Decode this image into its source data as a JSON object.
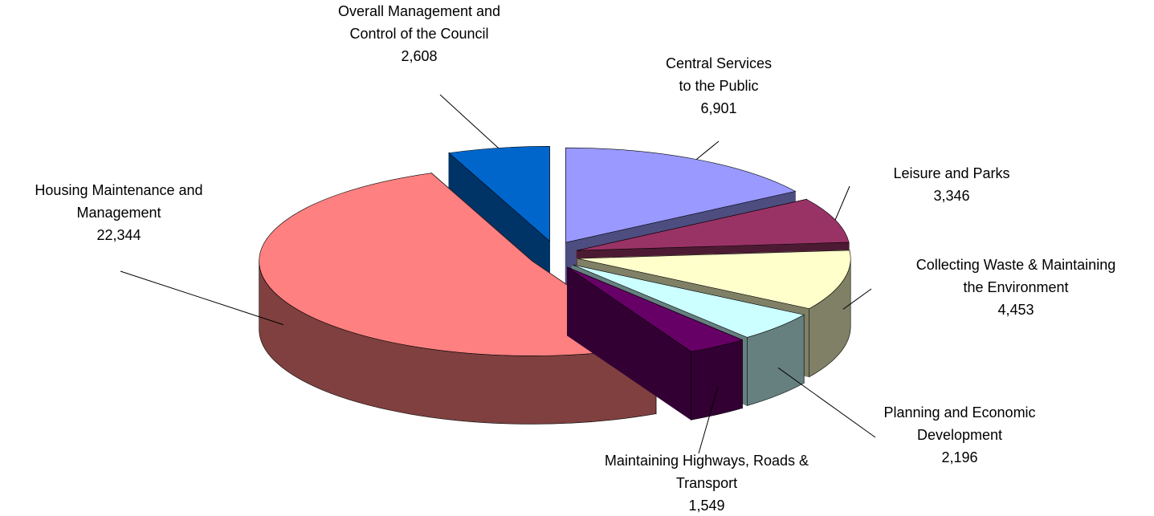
{
  "chart_data": {
    "type": "pie3d",
    "categories": [
      "Central Services\nto the Public",
      "Leisure and Parks",
      "Collecting Waste & Maintaining\nthe Environment",
      "Planning and Economic\nDevelopment",
      "Maintaining Highways, Roads &\nTransport",
      "Housing Maintenance and\nManagement",
      "Overall Management and\nControl of the Council"
    ],
    "values": [
      6901,
      3346,
      4453,
      2196,
      1549,
      22344,
      2608
    ],
    "value_labels": [
      "6,901",
      "3,346",
      "4,453",
      "2,196",
      "1,549",
      "22,344",
      "2,608"
    ],
    "colors": [
      "#9999ff",
      "#993366",
      "#ffffcc",
      "#ccffff",
      "#660066",
      "#ff8080",
      "#0066cc"
    ]
  }
}
